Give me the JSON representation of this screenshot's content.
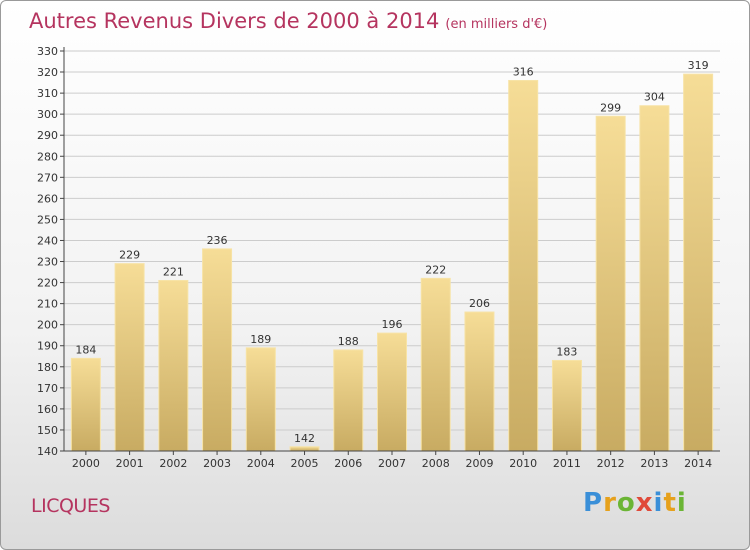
{
  "title": "Autres Revenus Divers de 2000 à 2014",
  "title_unit": "(en milliers d'€)",
  "place": "LICQUES",
  "logo": "Proxiti",
  "colors": {
    "title": "#b5345f",
    "bar_top": "#f6dd97",
    "bar_bottom": "#c8ab62",
    "axis": "#444444",
    "grid": "#cccccc"
  },
  "chart_data": {
    "type": "bar",
    "categories": [
      "2000",
      "2001",
      "2002",
      "2003",
      "2004",
      "2005",
      "2006",
      "2007",
      "2008",
      "2009",
      "2010",
      "2011",
      "2012",
      "2013",
      "2014"
    ],
    "values": [
      184,
      229,
      221,
      236,
      189,
      142,
      188,
      196,
      222,
      206,
      316,
      183,
      299,
      304,
      319
    ],
    "ylim": [
      140,
      330
    ],
    "yticks": [
      140,
      150,
      160,
      170,
      180,
      190,
      200,
      210,
      220,
      230,
      240,
      250,
      260,
      270,
      280,
      290,
      300,
      310,
      320,
      330
    ],
    "title": "Autres Revenus Divers de 2000 à 2014",
    "xlabel": "",
    "ylabel": "",
    "grid": true,
    "legend": "none"
  }
}
